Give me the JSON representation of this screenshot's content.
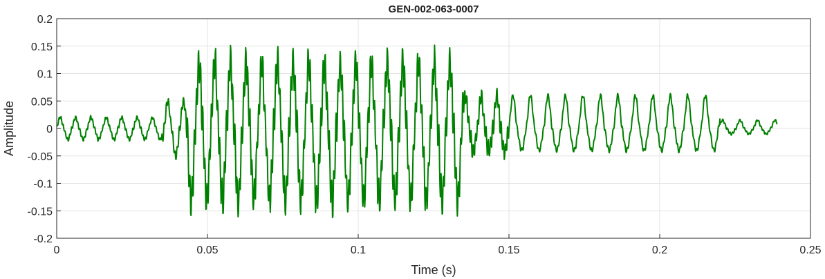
{
  "chart_data": {
    "type": "line",
    "title": "GEN-002-063-0007",
    "xlabel": "Time (s)",
    "ylabel": "Amplitude",
    "xlim": [
      0,
      0.25
    ],
    "ylim": [
      -0.2,
      0.2
    ],
    "x_ticks": [
      "0",
      "0.05",
      "0.1",
      "0.15",
      "0.2",
      "0.25"
    ],
    "x_tick_values": [
      0,
      0.05,
      0.1,
      0.15,
      0.2,
      0.25
    ],
    "y_ticks": [
      "0.2",
      "0.15",
      "0.1",
      "0.05",
      "0",
      "-0.05",
      "-0.1",
      "-0.15",
      "-0.2"
    ],
    "y_tick_values": [
      0.2,
      0.15,
      0.1,
      0.05,
      0,
      -0.05,
      -0.1,
      -0.15,
      -0.2
    ],
    "grid": true,
    "series": [
      {
        "color": "#008000",
        "segments": [
          {
            "t0": 0.0,
            "t1": 0.035,
            "period": 0.0051,
            "amp_pos": 0.02,
            "amp_neg": -0.02,
            "noise": 0.003
          },
          {
            "t0": 0.035,
            "t1": 0.043,
            "period": 0.0052,
            "amp_pos": 0.05,
            "amp_neg": -0.05,
            "noise": 0.008
          },
          {
            "t0": 0.043,
            "t1": 0.135,
            "period": 0.0052,
            "amp_pos": 0.12,
            "amp_neg": -0.13,
            "noise": 0.03
          },
          {
            "t0": 0.135,
            "t1": 0.15,
            "period": 0.0052,
            "amp_pos": 0.06,
            "amp_neg": -0.04,
            "noise": 0.015
          },
          {
            "t0": 0.15,
            "t1": 0.22,
            "period": 0.0058,
            "amp_pos": 0.06,
            "amp_neg": -0.04,
            "noise": 0.004
          },
          {
            "t0": 0.22,
            "t1": 0.239,
            "period": 0.0058,
            "amp_pos": 0.015,
            "amp_neg": -0.01,
            "noise": 0.002
          }
        ]
      }
    ]
  }
}
